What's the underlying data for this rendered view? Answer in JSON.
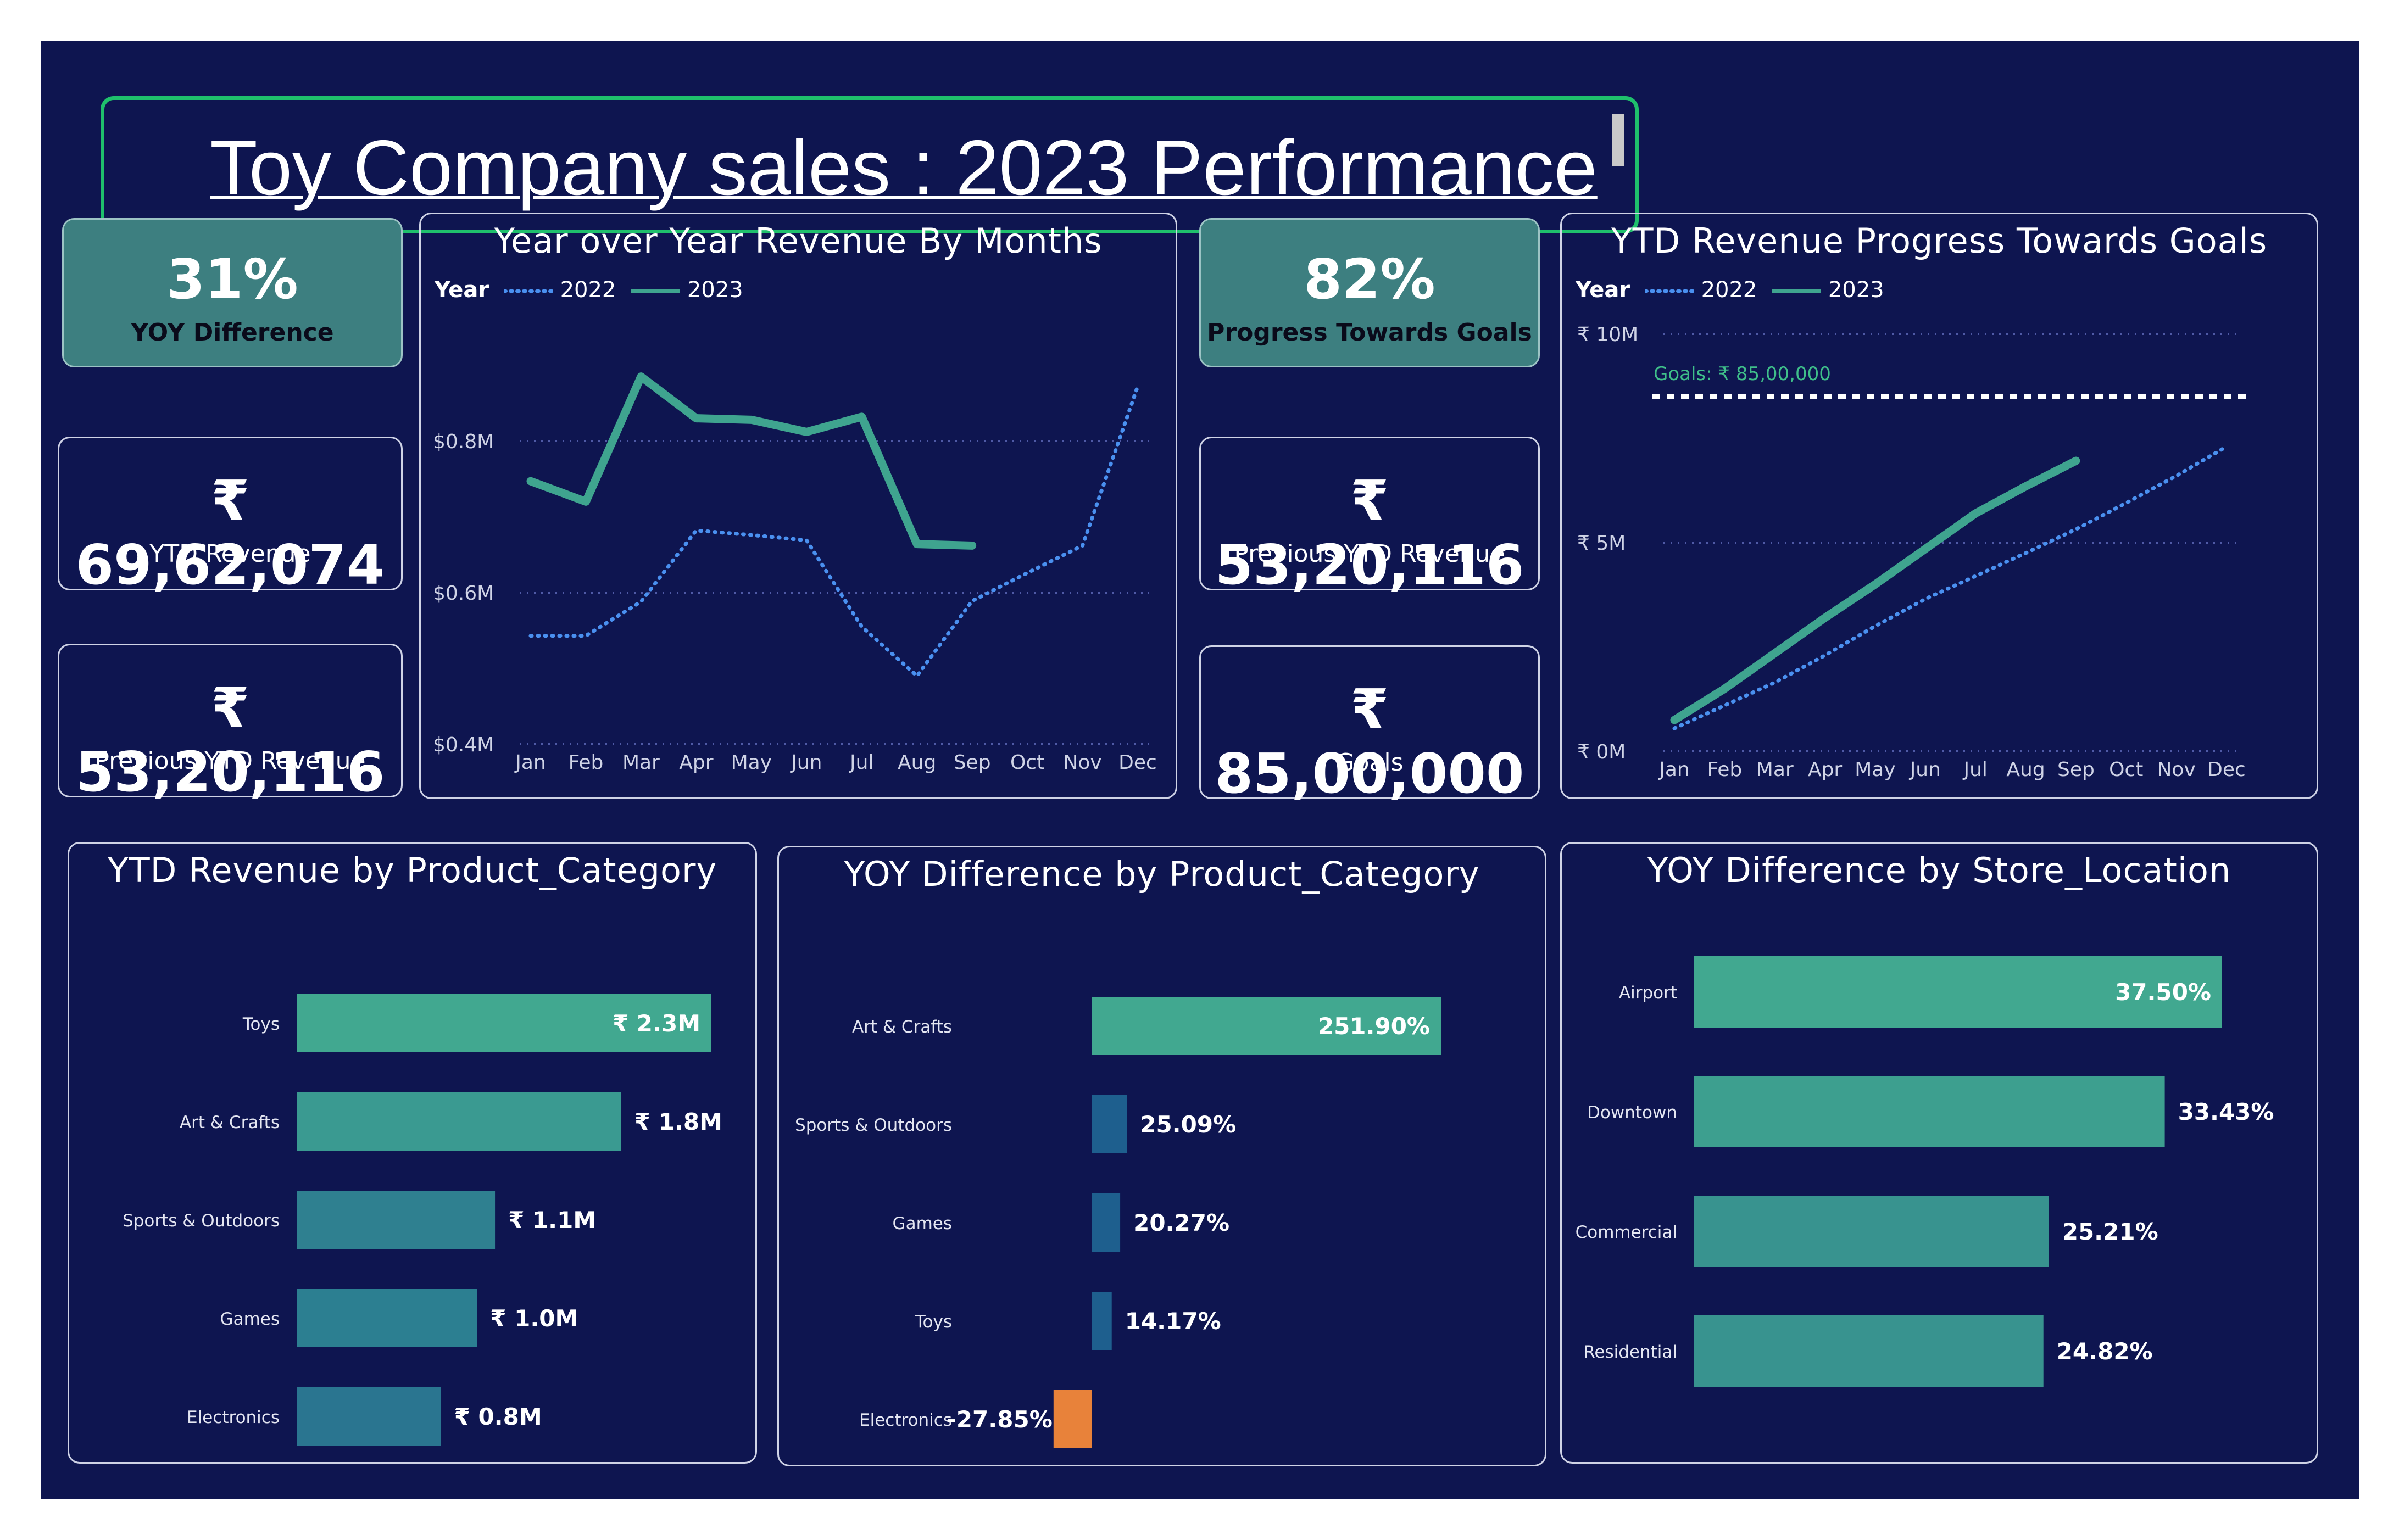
{
  "title": "Toy Company sales : 2023 Performance",
  "colors": {
    "background": "#0e1550",
    "accent_teal": "#3fa48f",
    "line_2022": "#4a90f0",
    "negative": "#e8823a",
    "title_border": "#1fc06c"
  },
  "kpis": {
    "yoy_difference": {
      "value": "31%",
      "label": "YOY Difference"
    },
    "ytd_revenue": {
      "value": "₹ 69,62,074",
      "label": "YTD Revenue"
    },
    "previous_ytd_left": {
      "value": "₹ 53,20,116",
      "label": "Previous YTD Revenue"
    },
    "progress": {
      "value": "82%",
      "label": "Progress Towards Goals"
    },
    "previous_ytd_right": {
      "value": "₹ 53,20,116",
      "label": "Previous YTD Revenue"
    },
    "goals": {
      "value": "₹ 85,00,000",
      "label": "Goals"
    }
  },
  "chart_data": [
    {
      "type": "line",
      "title": "Year over Year Revenue By Months",
      "legend_title": "Year",
      "legend_position": "top-left",
      "x": [
        "Jan",
        "Feb",
        "Mar",
        "Apr",
        "May",
        "Jun",
        "Jul",
        "Aug",
        "Sep",
        "Oct",
        "Nov",
        "Dec"
      ],
      "y_ticks": [
        "$0.4M",
        "$0.6M",
        "$0.8M"
      ],
      "ylim": [
        0.4,
        0.9
      ],
      "grid": true,
      "series": [
        {
          "name": "2022",
          "style": "dotted",
          "color": "#4a90f0",
          "values": [
            0.543,
            0.543,
            0.588,
            0.682,
            0.676,
            0.669,
            0.555,
            0.49,
            0.589,
            0.626,
            0.662,
            0.872
          ]
        },
        {
          "name": "2023",
          "style": "solid",
          "color": "#3fa48f",
          "values": [
            0.747,
            0.72,
            0.885,
            0.83,
            0.828,
            0.812,
            0.832,
            0.664,
            0.662,
            null,
            null,
            null
          ]
        }
      ]
    },
    {
      "type": "line",
      "title": "YTD Revenue Progress Towards Goals",
      "legend_title": "Year",
      "legend_position": "top-left",
      "x": [
        "Jan",
        "Feb",
        "Mar",
        "Apr",
        "May",
        "Jun",
        "Jul",
        "Aug",
        "Sep",
        "Oct",
        "Nov",
        "Dec"
      ],
      "y_ticks": [
        "₹ 0M",
        "₹ 5M",
        "₹ 10M"
      ],
      "ylim": [
        0,
        10
      ],
      "grid": true,
      "goal_line": {
        "value": 8.5,
        "label": "Goals: ₹ 85,00,000"
      },
      "series": [
        {
          "name": "2022",
          "style": "dotted",
          "color": "#4a90f0",
          "values": [
            0.55,
            1.1,
            1.65,
            2.3,
            3.0,
            3.65,
            4.2,
            4.75,
            5.32,
            5.95,
            6.6,
            7.3
          ]
        },
        {
          "name": "2023",
          "style": "solid",
          "color": "#3fa48f",
          "values": [
            0.75,
            1.5,
            2.35,
            3.2,
            4.0,
            4.85,
            5.7,
            6.35,
            6.96,
            null,
            null,
            null
          ]
        }
      ]
    },
    {
      "type": "bar",
      "orientation": "horizontal",
      "title": "YTD Revenue by Product_Category",
      "categories": [
        "Toys",
        "Art & Crafts",
        "Sports & Outdoors",
        "Games",
        "Electronics"
      ],
      "values": [
        2.3,
        1.8,
        1.1,
        1.0,
        0.8
      ],
      "labels": [
        "₹ 2.3M",
        "₹ 1.8M",
        "₹ 1.1M",
        "₹ 1.0M",
        "₹ 0.8M"
      ],
      "colors": [
        "#41a890",
        "#3a9a91",
        "#2f8090",
        "#2c7f91",
        "#2a7590"
      ]
    },
    {
      "type": "bar",
      "orientation": "horizontal",
      "title": "YOY Difference by Product_Category",
      "categories": [
        "Art & Crafts",
        "Sports & Outdoors",
        "Games",
        "Toys",
        "Electronics"
      ],
      "values": [
        251.9,
        25.09,
        20.27,
        14.17,
        -27.85
      ],
      "labels": [
        "251.90%",
        "25.09%",
        "20.27%",
        "14.17%",
        "-27.85%"
      ],
      "colors": [
        "#41a890",
        "#1e5f8e",
        "#1e5f8e",
        "#1e5f8e",
        "#e8823a"
      ]
    },
    {
      "type": "bar",
      "orientation": "horizontal",
      "title": "YOY Difference by Store_Location",
      "categories": [
        "Airport",
        "Downtown",
        "Commercial",
        "Residential"
      ],
      "values": [
        37.5,
        33.43,
        25.21,
        24.82
      ],
      "labels": [
        "37.50%",
        "33.43%",
        "25.21%",
        "24.82%"
      ],
      "colors": [
        "#41a890",
        "#3d9f8f",
        "#38938f",
        "#38938f"
      ]
    }
  ]
}
